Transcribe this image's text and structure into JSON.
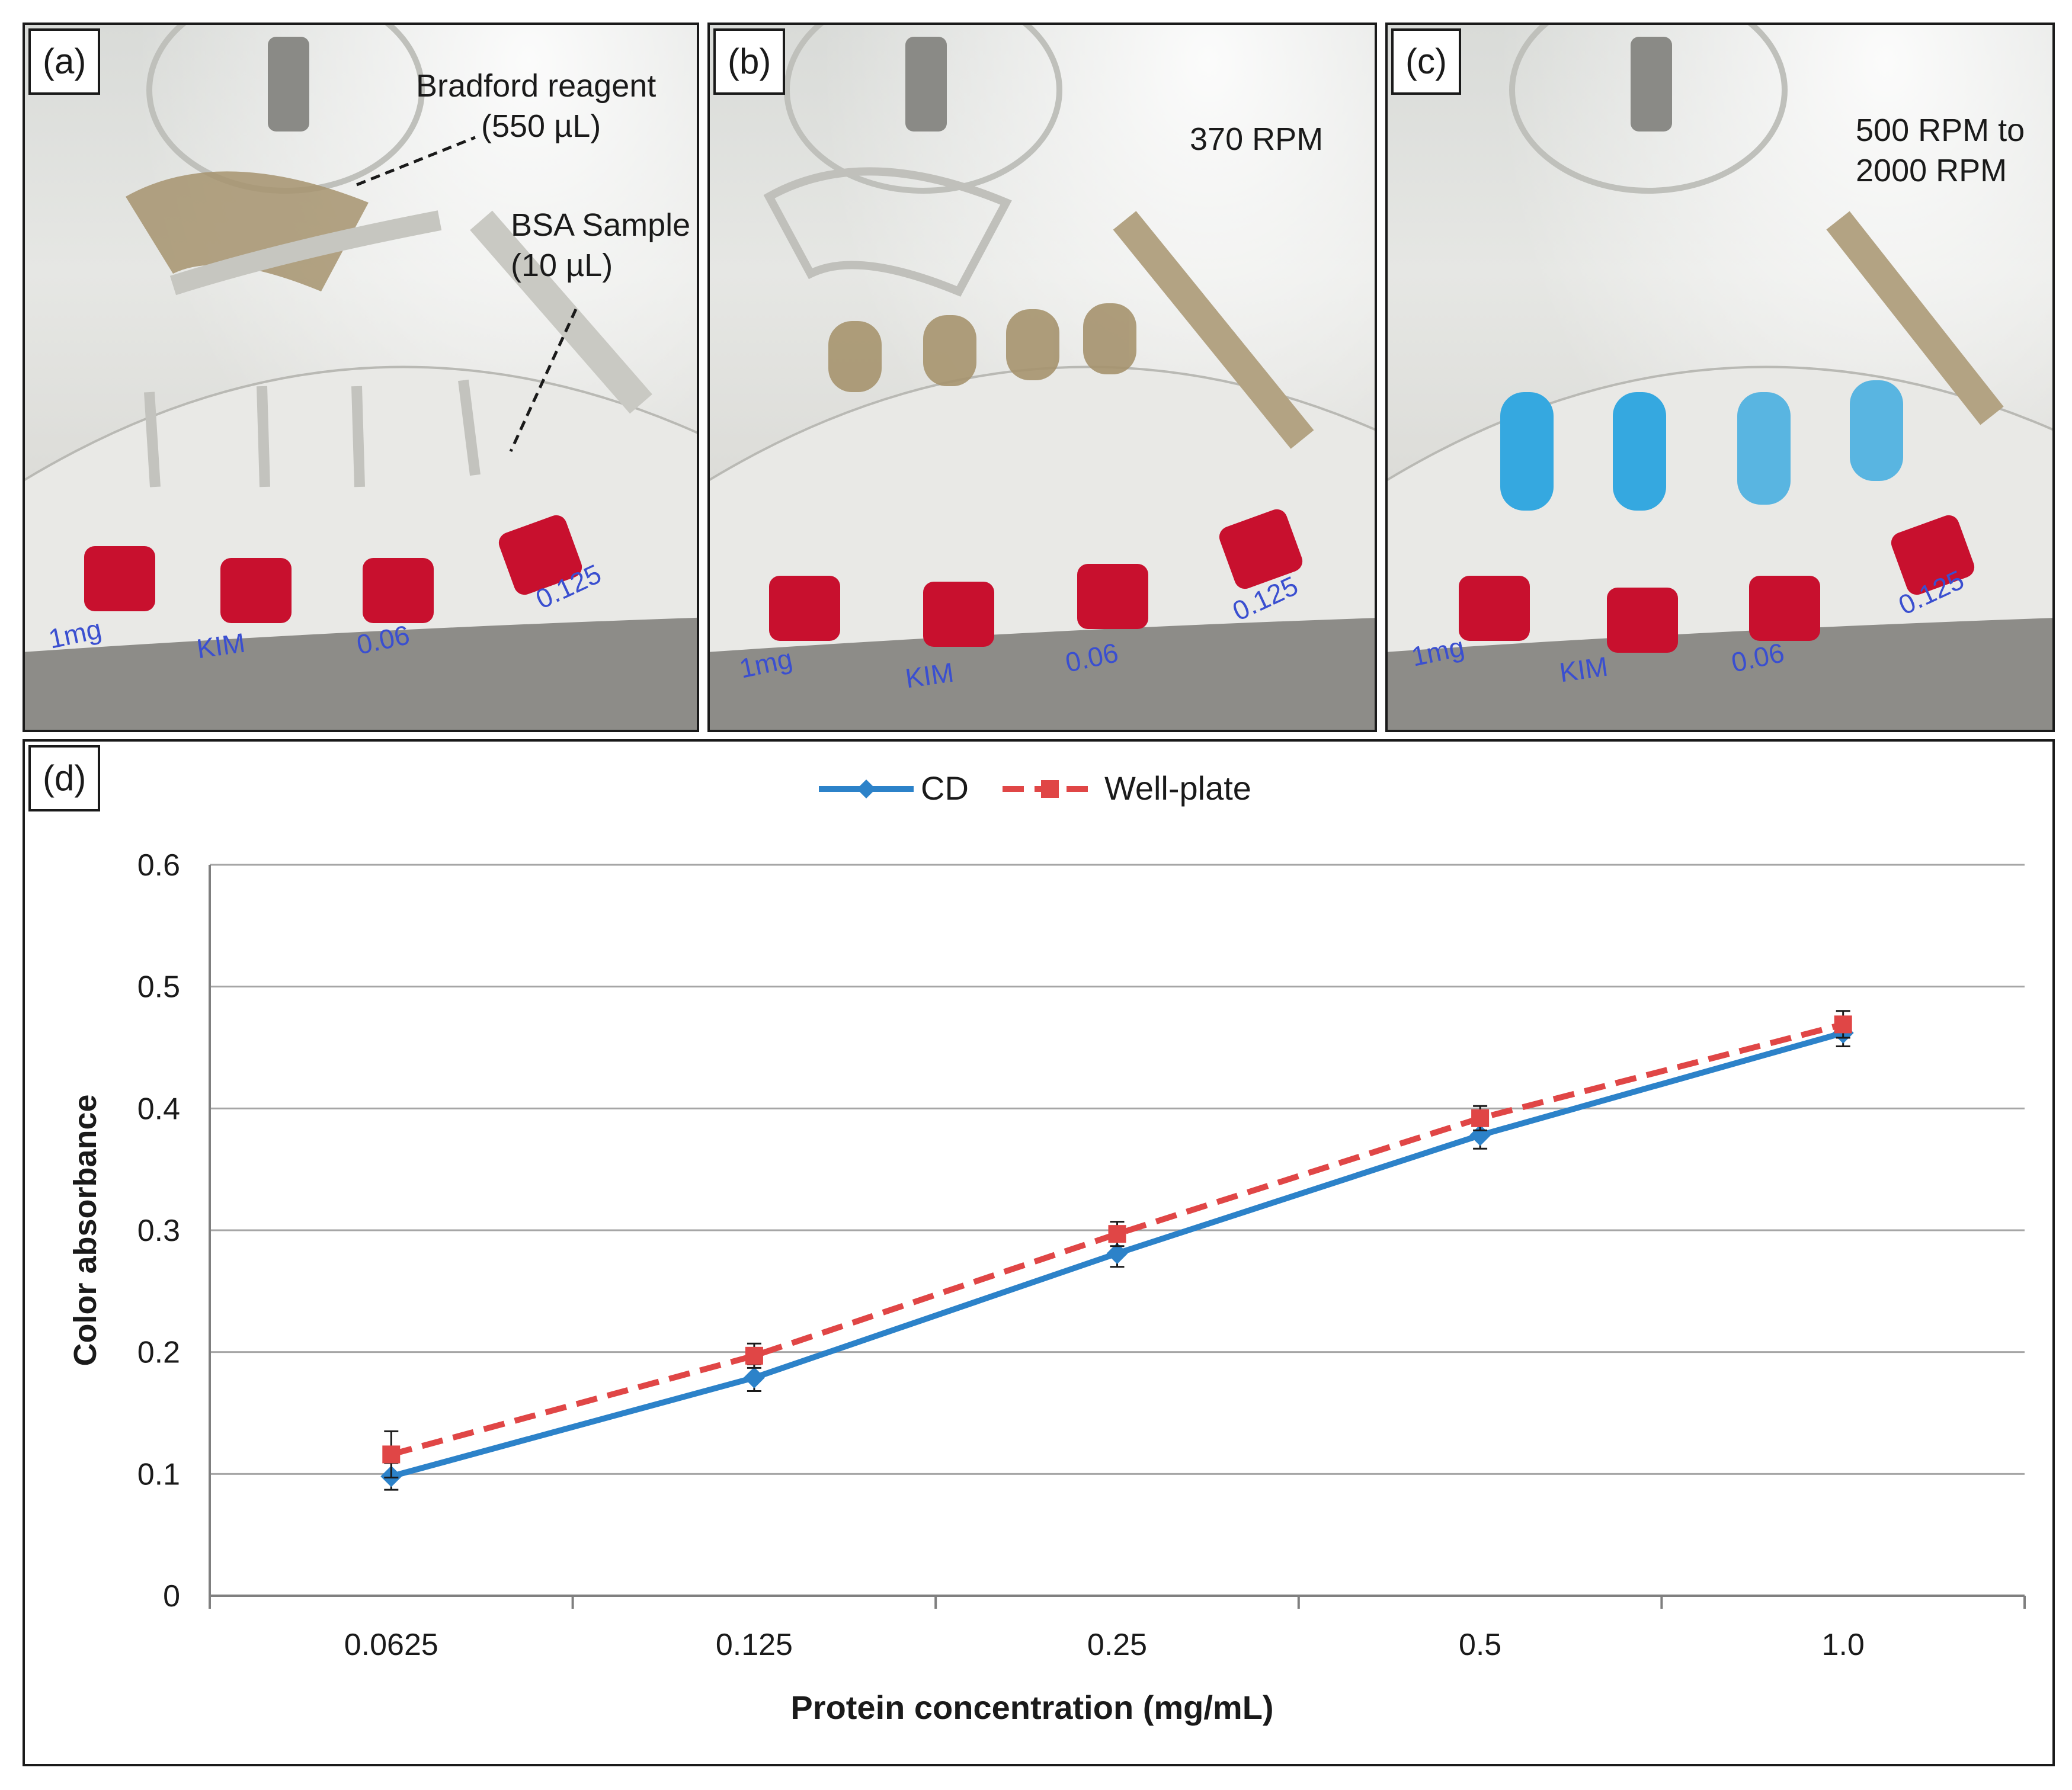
{
  "panels": {
    "a": {
      "tag": "(a)",
      "label_reagent": "Bradford reagent",
      "label_reagent_vol": "(550 µL)",
      "label_sample": "BSA Sample",
      "label_sample_vol": "(10 µL)",
      "well_labels": [
        "1mg",
        "KIM",
        "0.06",
        "0.125"
      ]
    },
    "b": {
      "tag": "(b)",
      "rpm": "370 RPM",
      "well_labels": [
        "1mg",
        "KIM",
        "0.06",
        "0.125"
      ]
    },
    "c": {
      "tag": "(c)",
      "rpm_line1": "500 RPM to",
      "rpm_line2": "2000 RPM",
      "well_labels": [
        "1mg",
        "KIM",
        "0.06",
        "0.125"
      ]
    },
    "d": {
      "tag": "(d)"
    }
  },
  "colors": {
    "cd": "#2c82c9",
    "wellplate": "#e04646",
    "grid": "#a6a6a6",
    "red_dye": "#c8102e",
    "blue_dye": "#35a8e0",
    "brown_reagent": "#a6936e"
  },
  "chart_data": {
    "type": "line",
    "title": "",
    "xlabel": "Protein concentration (mg/mL)",
    "ylabel": "Color absorbance",
    "categories": [
      "0.0625",
      "0.125",
      "0.25",
      "0.5",
      "1.0"
    ],
    "ylim": [
      0,
      0.6
    ],
    "yticks": [
      "0",
      "0.1",
      "0.2",
      "0.3",
      "0.4",
      "0.5",
      "0.6"
    ],
    "yticks_values": [
      0,
      0.1,
      0.2,
      0.3,
      0.4,
      0.5,
      0.6
    ],
    "grid": true,
    "legend_position": "top-center",
    "series": [
      {
        "name": "CD",
        "style": "solid",
        "marker": "diamond",
        "values": [
          0.098,
          0.179,
          0.281,
          0.378,
          0.462
        ],
        "errors": [
          0.011,
          0.011,
          0.011,
          0.011,
          0.011
        ]
      },
      {
        "name": "Well-plate",
        "style": "dashed",
        "marker": "square",
        "values": [
          0.116,
          0.197,
          0.297,
          0.392,
          0.469
        ],
        "errors": [
          0.019,
          0.01,
          0.01,
          0.01,
          0.011
        ]
      }
    ]
  }
}
